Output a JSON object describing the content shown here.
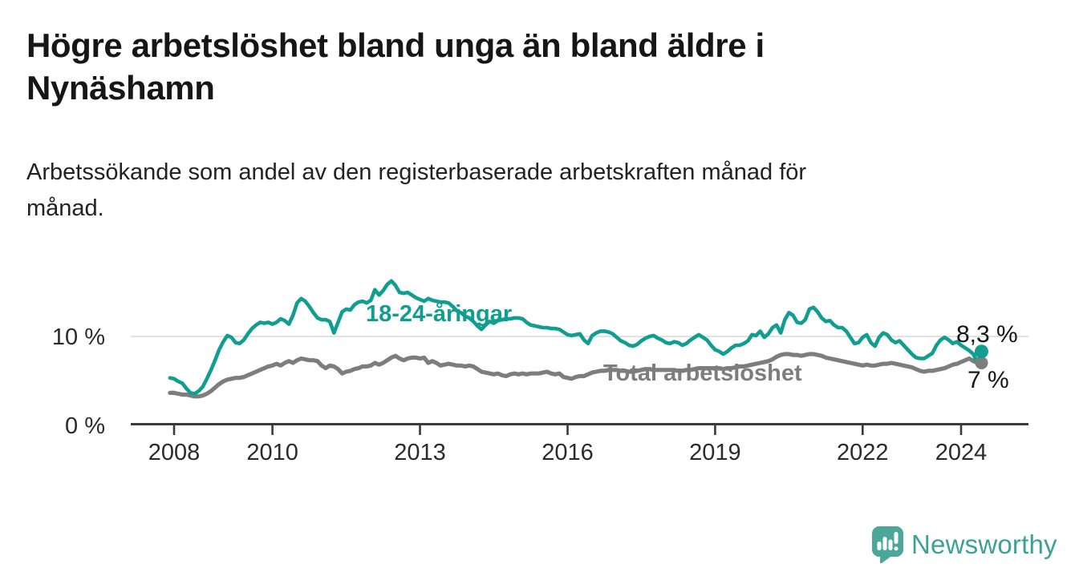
{
  "header": {
    "title": "Högre arbetslöshet bland unga än bland äldre i Nynäshamn",
    "title_lines": [
      "Högre arbetslöshet bland unga än bland äldre i",
      "Nynäshamn"
    ],
    "subtitle": "Arbetssökande som andel av den registerbaserade arbetskraften månad för månad.",
    "subtitle_lines": [
      "Arbetssökande som andel av den registerbaserade arbetskraften månad för",
      "månad."
    ]
  },
  "chart_data": {
    "type": "line",
    "title": "Högre arbetslöshet bland unga än bland äldre i Nynäshamn",
    "unit": "%",
    "x_unit": "month",
    "x_start": "2007-12",
    "x_end": "2024-06",
    "x_step_months": 1,
    "xlim": [
      2007.9,
      2025.3
    ],
    "ylim": [
      0,
      18
    ],
    "grid": "horizontal-10pct-only",
    "legend_position": "inline-labels",
    "x_ticks": [
      2008,
      2010,
      2013,
      2016,
      2019,
      2022,
      2024
    ],
    "y_tick_labels": [
      "0 %",
      "10 %"
    ],
    "y_gridline_values": [
      10
    ],
    "series": [
      {
        "name": "18-24-åringar",
        "color": "#109e90",
        "end_label": "8,3 %",
        "end_value": 8.3,
        "values": [
          5.3,
          5.2,
          4.9,
          4.7,
          4.1,
          3.6,
          3.5,
          3.8,
          4.3,
          5.2,
          6.2,
          7.3,
          8.5,
          9.4,
          10.1,
          9.9,
          9.3,
          9.2,
          9.6,
          10.3,
          10.9,
          11.3,
          11.6,
          11.5,
          11.6,
          11.4,
          11.6,
          12.0,
          11.8,
          11.4,
          12.4,
          13.8,
          14.3,
          14.0,
          13.4,
          12.7,
          12.1,
          11.9,
          11.9,
          11.7,
          10.4,
          11.6,
          12.8,
          13.1,
          13.0,
          13.6,
          13.9,
          14.0,
          13.8,
          14.1,
          15.3,
          14.7,
          15.2,
          15.9,
          16.3,
          15.8,
          15.0,
          14.9,
          15.0,
          14.7,
          14.4,
          14.2,
          14.0,
          14.3,
          14.1,
          14.0,
          13.9,
          13.9,
          13.8,
          13.4,
          12.9,
          12.7,
          12.3,
          12.1,
          11.7,
          11.2,
          10.8,
          11.3,
          11.7,
          11.5,
          11.8,
          11.9,
          12.0,
          12.0,
          12.1,
          12.1,
          12.0,
          11.6,
          11.3,
          11.2,
          11.1,
          11.0,
          11.0,
          10.9,
          10.9,
          10.8,
          10.5,
          10.2,
          10.1,
          10.2,
          10.3,
          9.6,
          9.2,
          10.1,
          10.4,
          10.6,
          10.6,
          10.5,
          10.3,
          9.9,
          9.5,
          9.3,
          9.0,
          8.9,
          9.1,
          9.5,
          9.8,
          10.0,
          10.1,
          9.8,
          9.6,
          9.3,
          9.2,
          9.4,
          9.3,
          9.0,
          9.2,
          9.6,
          9.9,
          10.2,
          9.9,
          9.6,
          9.0,
          8.5,
          8.3,
          8.0,
          8.3,
          8.7,
          9.0,
          9.0,
          9.2,
          9.5,
          10.2,
          10.1,
          10.6,
          9.9,
          10.3,
          11.0,
          11.3,
          10.4,
          11.9,
          12.7,
          12.4,
          11.6,
          11.5,
          11.9,
          13.1,
          13.3,
          12.8,
          12.1,
          11.7,
          11.8,
          11.3,
          11.0,
          11.0,
          10.6,
          9.9,
          9.2,
          9.3,
          9.9,
          10.2,
          9.3,
          8.9,
          9.9,
          10.4,
          10.2,
          9.6,
          9.3,
          9.5,
          9.0,
          8.5,
          8.0,
          7.6,
          7.5,
          7.5,
          7.8,
          8.1,
          9.0,
          9.6,
          9.9,
          9.6,
          9.2,
          9.4,
          9.0,
          8.7,
          8.4,
          8.0,
          7.0,
          8.3
        ]
      },
      {
        "name": "Total arbetslöshet",
        "color": "#7d7d7d",
        "end_label": "7 %",
        "end_value": 7.0,
        "values": [
          3.6,
          3.6,
          3.5,
          3.4,
          3.4,
          3.3,
          3.2,
          3.2,
          3.3,
          3.5,
          3.8,
          4.2,
          4.6,
          4.9,
          5.1,
          5.2,
          5.3,
          5.3,
          5.4,
          5.6,
          5.8,
          6.0,
          6.2,
          6.4,
          6.6,
          6.7,
          6.9,
          6.7,
          7.0,
          7.2,
          7.0,
          7.3,
          7.5,
          7.4,
          7.3,
          7.3,
          7.2,
          6.7,
          6.4,
          6.7,
          6.6,
          6.3,
          5.8,
          6.0,
          6.1,
          6.3,
          6.4,
          6.6,
          6.6,
          6.7,
          7.0,
          6.8,
          7.0,
          7.3,
          7.6,
          7.8,
          7.5,
          7.3,
          7.5,
          7.6,
          7.6,
          7.5,
          7.6,
          7.0,
          7.2,
          7.0,
          6.7,
          6.8,
          6.9,
          6.8,
          6.7,
          6.7,
          6.6,
          6.7,
          6.6,
          6.3,
          6.0,
          5.9,
          5.8,
          5.7,
          5.8,
          5.6,
          5.5,
          5.7,
          5.8,
          5.7,
          5.8,
          5.7,
          5.8,
          5.8,
          5.8,
          5.9,
          6.0,
          5.8,
          5.7,
          5.8,
          5.4,
          5.3,
          5.2,
          5.4,
          5.5,
          5.5,
          5.7,
          5.9,
          6.0,
          6.1,
          6.1,
          6.2,
          6.2,
          6.2,
          6.1,
          6.1,
          6.0,
          6.0,
          6.1,
          6.2,
          6.3,
          6.3,
          6.2,
          6.2,
          6.2,
          6.2,
          6.2,
          6.2,
          6.1,
          6.1,
          6.2,
          6.2,
          6.3,
          6.4,
          6.4,
          6.4,
          6.4,
          6.4,
          6.4,
          6.3,
          6.4,
          6.4,
          6.5,
          6.6,
          6.6,
          6.7,
          6.8,
          6.9,
          7.0,
          7.1,
          7.2,
          7.4,
          7.7,
          7.9,
          8.0,
          8.0,
          7.9,
          7.9,
          7.8,
          7.9,
          8.0,
          8.0,
          7.9,
          7.8,
          7.6,
          7.5,
          7.4,
          7.3,
          7.2,
          7.1,
          7.0,
          6.9,
          6.8,
          6.7,
          6.8,
          6.7,
          6.7,
          6.8,
          6.9,
          6.9,
          7.0,
          6.9,
          6.8,
          6.7,
          6.6,
          6.5,
          6.3,
          6.1,
          6.0,
          6.1,
          6.1,
          6.2,
          6.3,
          6.4,
          6.6,
          6.8,
          6.9,
          7.1,
          7.3,
          7.5,
          7.2,
          7.0,
          7.0
        ]
      }
    ]
  },
  "footer": {
    "brand": "Newsworthy",
    "brand_color": "#3ba295",
    "logo_bubble_color": "#4aa79a",
    "logo_icon": "bar-chart-speech-bubble"
  }
}
